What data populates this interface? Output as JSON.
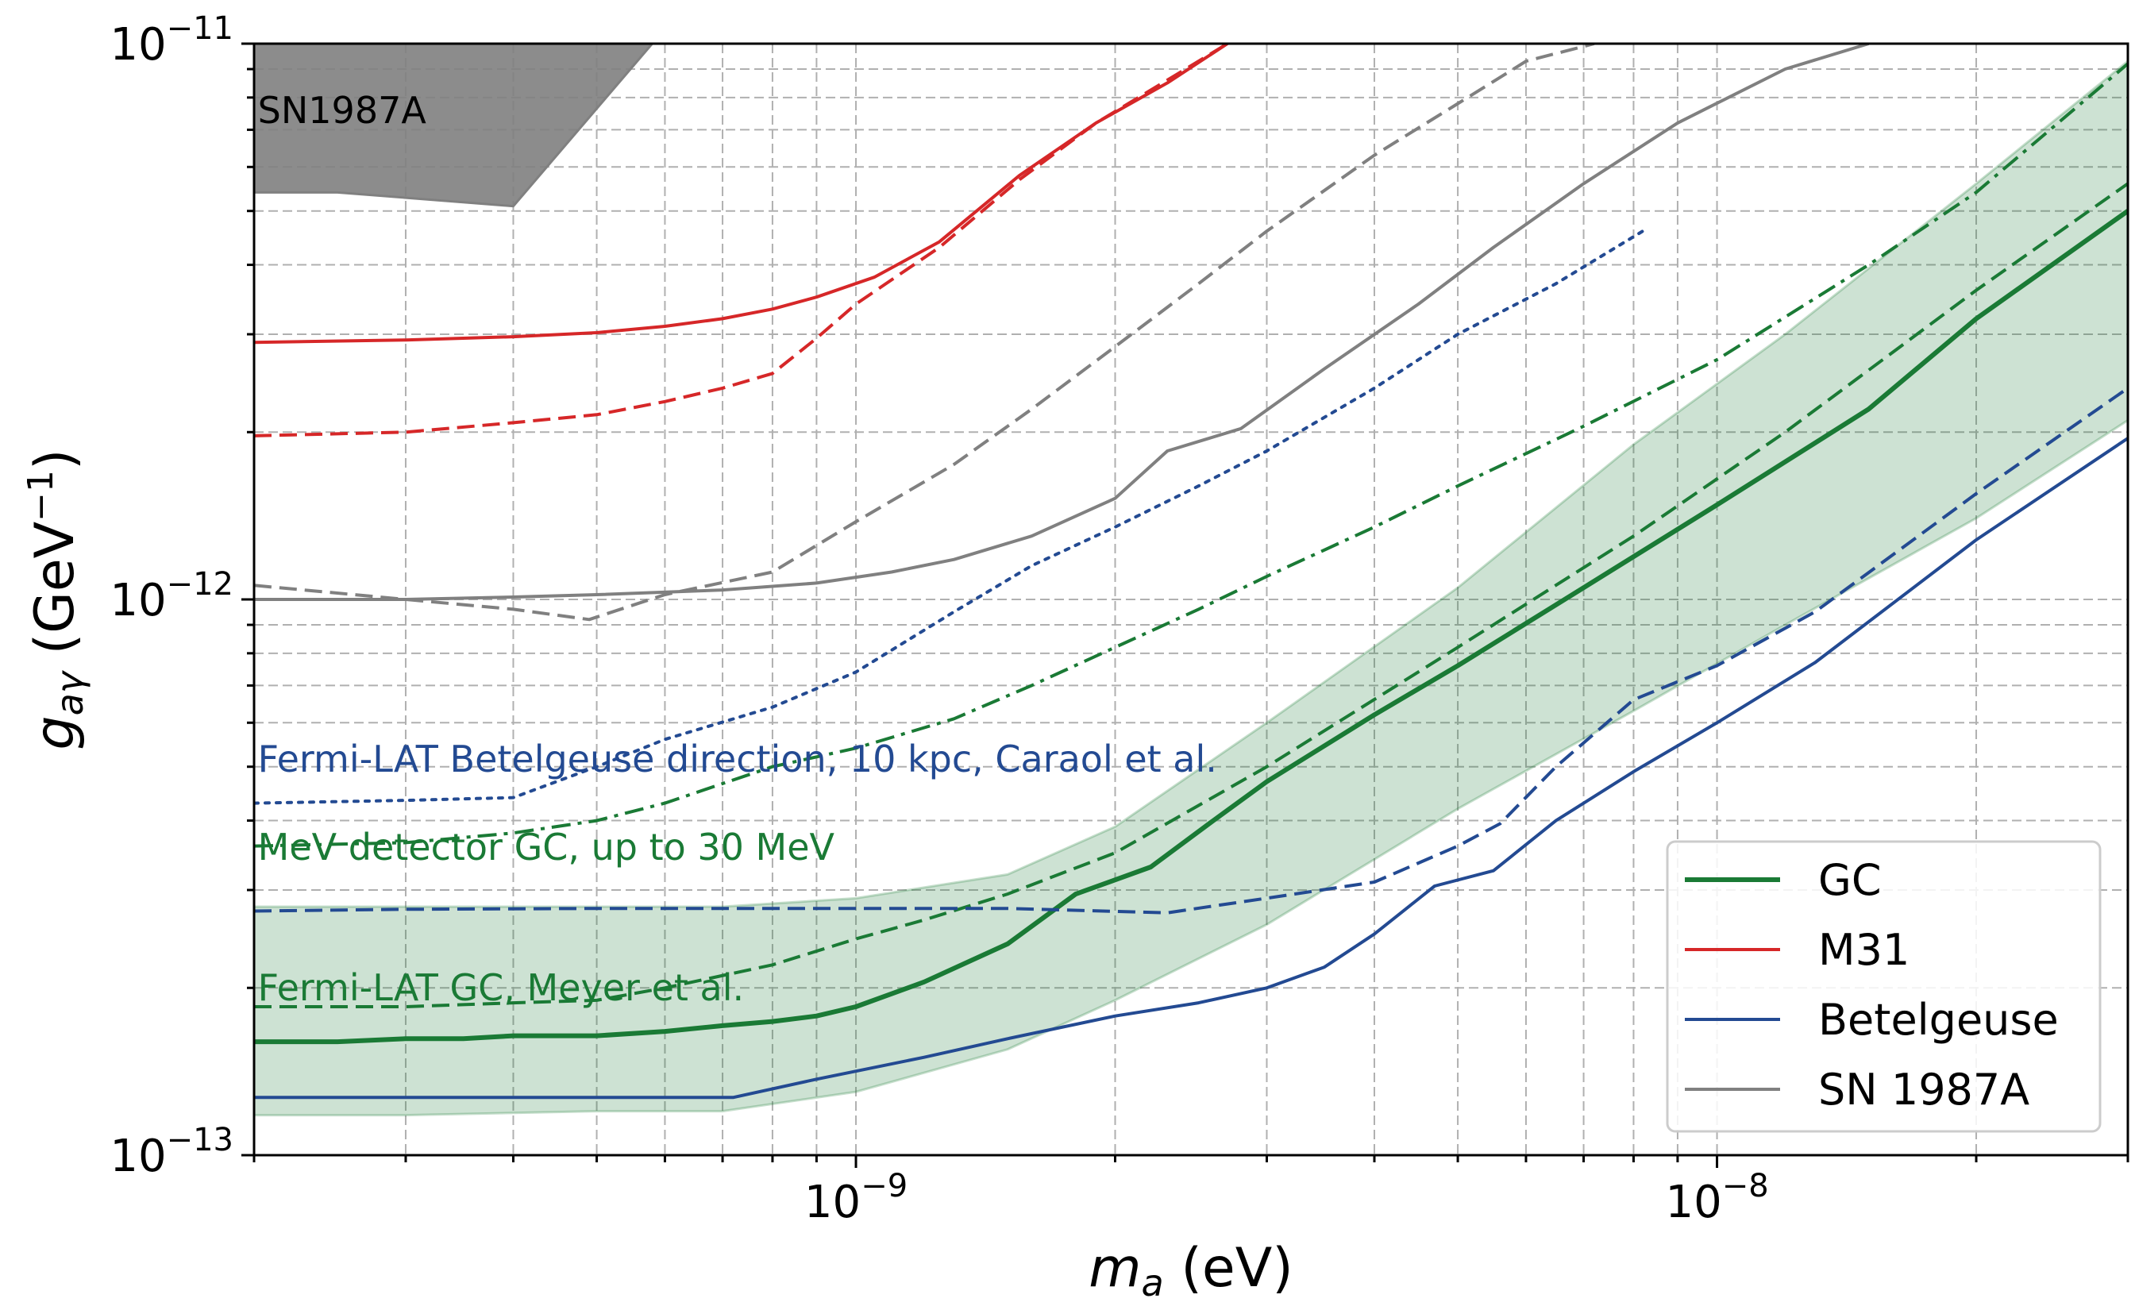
{
  "chart_data": {
    "type": "line",
    "xlabel": {
      "sym": "m",
      "sub": "a",
      "unit": "(eV)"
    },
    "ylabel": {
      "sym": "g",
      "sub": "aγ",
      "unit_open": "(GeV",
      "unit_sup": "−1",
      "unit_close": ")"
    },
    "xscale": "log",
    "yscale": "log",
    "xlim": [
      2e-10,
      3e-08
    ],
    "ylim": [
      1e-13,
      1e-11
    ],
    "grid": true,
    "x_ticks": [
      {
        "value": 1e-09,
        "base": "10",
        "exp": "−9"
      },
      {
        "value": 1e-08,
        "base": "10",
        "exp": "−8"
      }
    ],
    "y_ticks": [
      {
        "value": 1e-13,
        "base": "10",
        "exp": "−13"
      },
      {
        "value": 1e-12,
        "base": "10",
        "exp": "−12"
      },
      {
        "value": 1e-11,
        "base": "10",
        "exp": "−11"
      }
    ],
    "legend": {
      "position": "lower-right",
      "entries": [
        {
          "label": "GC",
          "color": "#1a7a35",
          "width": 6
        },
        {
          "label": "M31",
          "color": "#d62728",
          "width": 4
        },
        {
          "label": "Betelgeuse",
          "color": "#234a92",
          "width": 4
        },
        {
          "label": "SN 1987A",
          "color": "#808080",
          "width": 4
        }
      ]
    },
    "shaded_regions": [
      {
        "label": "SN1987A",
        "color": "#808080",
        "x": [
          2e-10,
          2.5e-10,
          4e-10,
          5.8e-10
        ],
        "y_lower": [
          5.4e-12,
          5.4e-12,
          5.1e-12,
          1e-11
        ],
        "y_upper": [
          1e-11,
          1e-11,
          1e-11,
          1e-11
        ]
      }
    ],
    "bands": [
      {
        "color": "#1a7a35",
        "x": [
          2e-10,
          3e-10,
          5e-10,
          7e-10,
          1e-09,
          1.5e-09,
          2e-09,
          3e-09,
          5e-09,
          8e-09,
          1.2e-08,
          2e-08,
          3e-08
        ],
        "y_lower": [
          1.18e-13,
          1.18e-13,
          1.2e-13,
          1.2e-13,
          1.3e-13,
          1.55e-13,
          1.9e-13,
          2.6e-13,
          4.2e-13,
          6.3e-13,
          9e-13,
          1.4e-12,
          2.1e-12
        ],
        "y_upper": [
          2.8e-13,
          2.8e-13,
          2.8e-13,
          2.8e-13,
          2.9e-13,
          3.2e-13,
          3.9e-13,
          6e-13,
          1.05e-12,
          1.9e-12,
          3e-12,
          5.6e-12,
          9.3e-12
        ]
      }
    ],
    "series": [
      {
        "color": "#1a7a35",
        "dash": "solid",
        "width": 6,
        "x": [
          2e-10,
          2.5e-10,
          3e-10,
          3.5e-10,
          4e-10,
          5e-10,
          6e-10,
          7e-10,
          8e-10,
          9e-10,
          1e-09,
          1.2e-09,
          1.5e-09,
          1.8e-09,
          2.2e-09,
          2.6e-09,
          3e-09,
          4e-09,
          5e-09,
          7e-09,
          1e-08,
          1.5e-08,
          2e-08,
          3e-08
        ],
        "y": [
          1.6e-13,
          1.6e-13,
          1.62e-13,
          1.62e-13,
          1.64e-13,
          1.64e-13,
          1.67e-13,
          1.71e-13,
          1.74e-13,
          1.78e-13,
          1.85e-13,
          2.05e-13,
          2.4e-13,
          2.95e-13,
          3.3e-13,
          4e-13,
          4.7e-13,
          6.2e-13,
          7.6e-13,
          1.05e-12,
          1.48e-12,
          2.2e-12,
          3.2e-12,
          5e-12
        ]
      },
      {
        "color": "#1a7a35",
        "dash": "dashed",
        "width": 4,
        "x": [
          2e-10,
          3e-10,
          4e-10,
          5e-10,
          6e-10,
          8e-10,
          1e-09,
          1.2e-09,
          1.5e-09,
          2e-09,
          3e-09,
          5e-09,
          8e-09,
          1.2e-08,
          2e-08,
          3e-08
        ],
        "y": [
          1.85e-13,
          1.85e-13,
          1.88e-13,
          1.9e-13,
          2e-13,
          2.2e-13,
          2.45e-13,
          2.65e-13,
          2.95e-13,
          3.5e-13,
          5e-13,
          8.2e-13,
          1.3e-12,
          2e-12,
          3.6e-12,
          5.6e-12
        ]
      },
      {
        "color": "#1a7a35",
        "dash": "dashdot",
        "width": 4,
        "x": [
          2e-10,
          3e-10,
          4e-10,
          5e-10,
          6e-10,
          8e-10,
          1e-09,
          1.3e-09,
          1.6e-09,
          2e-09,
          2.5e-09,
          3e-09,
          4e-09,
          5e-09,
          7e-09,
          1e-08,
          1.5e-08,
          2e-08,
          3e-08
        ],
        "y": [
          3.6e-13,
          3.65e-13,
          3.8e-13,
          4e-13,
          4.3e-13,
          5e-13,
          5.4e-13,
          6.1e-13,
          7e-13,
          8.2e-13,
          9.6e-13,
          1.1e-12,
          1.35e-12,
          1.6e-12,
          2.05e-12,
          2.7e-12,
          4e-12,
          5.4e-12,
          9.2e-12
        ]
      },
      {
        "color": "#d62728",
        "dash": "solid",
        "width": 4,
        "x": [
          2e-10,
          3e-10,
          4e-10,
          5e-10,
          6e-10,
          7e-10,
          8e-10,
          9e-10,
          1.05e-09,
          1.25e-09,
          1.55e-09,
          1.9e-09,
          2.3e-09,
          2.7e-09
        ],
        "y": [
          2.9e-12,
          2.93e-12,
          2.97e-12,
          3.02e-12,
          3.1e-12,
          3.2e-12,
          3.33e-12,
          3.5e-12,
          3.8e-12,
          4.4e-12,
          5.8e-12,
          7.2e-12,
          8.5e-12,
          1e-11
        ]
      },
      {
        "color": "#d62728",
        "dash": "dashed",
        "width": 4,
        "x": [
          2e-10,
          3e-10,
          4e-10,
          5e-10,
          6e-10,
          7e-10,
          8e-10,
          9e-10,
          1e-09,
          1.25e-09,
          1.55e-09,
          1.9e-09,
          2.3e-09,
          2.7e-09
        ],
        "y": [
          1.97e-12,
          2e-12,
          2.08e-12,
          2.15e-12,
          2.27e-12,
          2.4e-12,
          2.55e-12,
          2.95e-12,
          3.4e-12,
          4.3e-12,
          5.7e-12,
          7.2e-12,
          8.6e-12,
          1e-11
        ]
      },
      {
        "color": "#234a92",
        "dash": "solid",
        "width": 4,
        "x": [
          2e-10,
          3e-10,
          5e-10,
          7.2e-10,
          9e-10,
          1.2e-09,
          1.5e-09,
          2e-09,
          2.5e-09,
          3e-09,
          3.5e-09,
          4e-09,
          4.7e-09,
          5.5e-09,
          6.5e-09,
          8e-09,
          1e-08,
          1.3e-08,
          2e-08,
          3e-08
        ],
        "y": [
          1.27e-13,
          1.27e-13,
          1.27e-13,
          1.27e-13,
          1.37e-13,
          1.5e-13,
          1.62e-13,
          1.78e-13,
          1.88e-13,
          2e-13,
          2.18e-13,
          2.5e-13,
          3.05e-13,
          3.25e-13,
          4e-13,
          4.9e-13,
          6e-13,
          7.7e-13,
          1.28e-12,
          1.95e-12
        ]
      },
      {
        "color": "#234a92",
        "dash": "dashed",
        "width": 4,
        "x": [
          2e-10,
          3e-10,
          5e-10,
          7e-10,
          1e-09,
          1.5e-09,
          2.3e-09,
          3e-09,
          4e-09,
          5e-09,
          5.6e-09,
          6.5e-09,
          8e-09,
          1e-08,
          1.3e-08,
          2e-08,
          3e-08
        ],
        "y": [
          2.75e-13,
          2.77e-13,
          2.78e-13,
          2.78e-13,
          2.78e-13,
          2.78e-13,
          2.73e-13,
          2.9e-13,
          3.1e-13,
          3.6e-13,
          3.95e-13,
          5e-13,
          6.6e-13,
          7.6e-13,
          9.5e-13,
          1.55e-12,
          2.4e-12
        ]
      },
      {
        "color": "#234a92",
        "dash": "dotted",
        "width": 4,
        "x": [
          2e-10,
          3e-10,
          4e-10,
          5e-10,
          6e-10,
          8e-10,
          1e-09,
          1.3e-09,
          1.6e-09,
          2e-09,
          2.5e-09,
          3e-09,
          4e-09,
          5e-09,
          6.5e-09,
          8.2e-09
        ],
        "y": [
          4.3e-13,
          4.35e-13,
          4.4e-13,
          5e-13,
          5.6e-13,
          6.4e-13,
          7.4e-13,
          9.5e-13,
          1.15e-12,
          1.35e-12,
          1.6e-12,
          1.85e-12,
          2.4e-12,
          3e-12,
          3.7e-12,
          4.6e-12
        ]
      },
      {
        "color": "#808080",
        "dash": "solid",
        "width": 4,
        "x": [
          2e-10,
          3e-10,
          4e-10,
          5e-10,
          7e-10,
          9e-10,
          1.1e-09,
          1.3e-09,
          1.6e-09,
          2e-09,
          2.3e-09,
          2.8e-09,
          3.5e-09,
          4.5e-09,
          5.5e-09,
          7e-09,
          9e-09,
          1.2e-08,
          1.5e-08
        ],
        "y": [
          1e-12,
          1e-12,
          1.01e-12,
          1.02e-12,
          1.04e-12,
          1.07e-12,
          1.12e-12,
          1.18e-12,
          1.3e-12,
          1.52e-12,
          1.85e-12,
          2.03e-12,
          2.6e-12,
          3.4e-12,
          4.3e-12,
          5.6e-12,
          7.2e-12,
          9e-12,
          1e-11
        ]
      },
      {
        "color": "#808080",
        "dash": "dashed",
        "width": 4,
        "x": [
          2e-10,
          3e-10,
          4e-10,
          4.9e-10,
          6e-10,
          8e-10,
          1e-09,
          1.3e-09,
          1.6e-09,
          2e-09,
          2.5e-09,
          3e-09,
          4e-09,
          5e-09,
          6e-09,
          7.2e-09
        ],
        "y": [
          1.06e-12,
          1e-12,
          9.6e-13,
          9.2e-13,
          1.02e-12,
          1.12e-12,
          1.38e-12,
          1.75e-12,
          2.2e-12,
          2.85e-12,
          3.7e-12,
          4.6e-12,
          6.3e-12,
          7.8e-12,
          9.3e-12,
          1e-11
        ]
      }
    ],
    "annotations": [
      {
        "text": "SN1987A",
        "color": "#000000",
        "x": 2.02e-10,
        "y": 7.2e-12
      },
      {
        "text": "Fermi-LAT Betelgeuse direction, 10 kpc, Caraol et al.",
        "color": "#234a92",
        "x": 2.02e-10,
        "y": 4.9e-13
      },
      {
        "text": "MeV detector GC, up to 30 MeV",
        "color": "#1a7a35",
        "x": 2.02e-10,
        "y": 3.4e-13
      },
      {
        "text": "Fermi-LAT GC, Meyer et al.",
        "color": "#1a7a35",
        "x": 2.02e-10,
        "y": 1.9e-13
      }
    ]
  }
}
